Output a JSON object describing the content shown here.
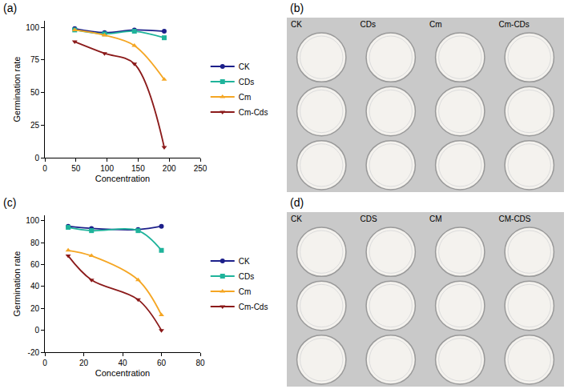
{
  "chart_data": [
    {
      "type": "line",
      "panel": "(a)",
      "x_label": "Concentration",
      "y_label": "Germination rate",
      "x": [
        48,
        96,
        144,
        192
      ],
      "series": [
        {
          "name": "CK",
          "color": "#1c1f8a",
          "marker": "circle",
          "line_style": "spline",
          "values": [
            99,
            96,
            98,
            97
          ]
        },
        {
          "name": "CDs",
          "color": "#1fb39b",
          "marker": "square",
          "line_style": "spline",
          "values": [
            98,
            95,
            97,
            92
          ]
        },
        {
          "name": "Cm",
          "color": "#f5a623",
          "marker": "triangle-up",
          "line_style": "spline",
          "values": [
            98,
            94,
            86,
            60
          ]
        },
        {
          "name": "Cm-Cds",
          "color": "#8b1a1a",
          "marker": "triangle-down",
          "line_style": "spline",
          "values": [
            89,
            80,
            72,
            8
          ]
        }
      ],
      "xlim": [
        0,
        250
      ],
      "xticks": [
        0,
        50,
        100,
        150,
        200,
        250
      ],
      "ylim": [
        0,
        105
      ],
      "yticks": [
        0,
        25,
        50,
        75,
        100
      ],
      "grid": false,
      "legend": "right"
    },
    {
      "type": "line",
      "panel": "(c)",
      "x_label": "Concentration",
      "y_label": "Germination rate",
      "x": [
        12,
        24,
        48,
        60
      ],
      "series": [
        {
          "name": "CK",
          "color": "#1c1f8a",
          "marker": "circle",
          "line_style": "spline",
          "values": [
            95,
            93,
            92,
            95
          ]
        },
        {
          "name": "CDs",
          "color": "#1fb39b",
          "marker": "square",
          "line_style": "spline",
          "values": [
            94,
            91,
            91,
            73
          ]
        },
        {
          "name": "Cm",
          "color": "#f5a623",
          "marker": "triangle-up",
          "line_style": "spline",
          "values": [
            73,
            68,
            46,
            14
          ]
        },
        {
          "name": "Cm-Cds",
          "color": "#8b1a1a",
          "marker": "triangle-down",
          "line_style": "spline",
          "values": [
            68,
            46,
            28,
            0
          ]
        }
      ],
      "xlim": [
        0,
        80
      ],
      "xticks": [
        0,
        20,
        40,
        60,
        80
      ],
      "ylim": [
        -20,
        105
      ],
      "yticks": [
        -20,
        0,
        20,
        40,
        60,
        80,
        100
      ],
      "grid": false,
      "legend": "right"
    }
  ],
  "photos": [
    {
      "panel": "(b)",
      "columns": [
        "CK",
        "CDs",
        "Cm",
        "Cm-CDs"
      ]
    },
    {
      "panel": "(d)",
      "columns": [
        "CK",
        "CDS",
        "CM",
        "CM-CDS"
      ]
    }
  ]
}
